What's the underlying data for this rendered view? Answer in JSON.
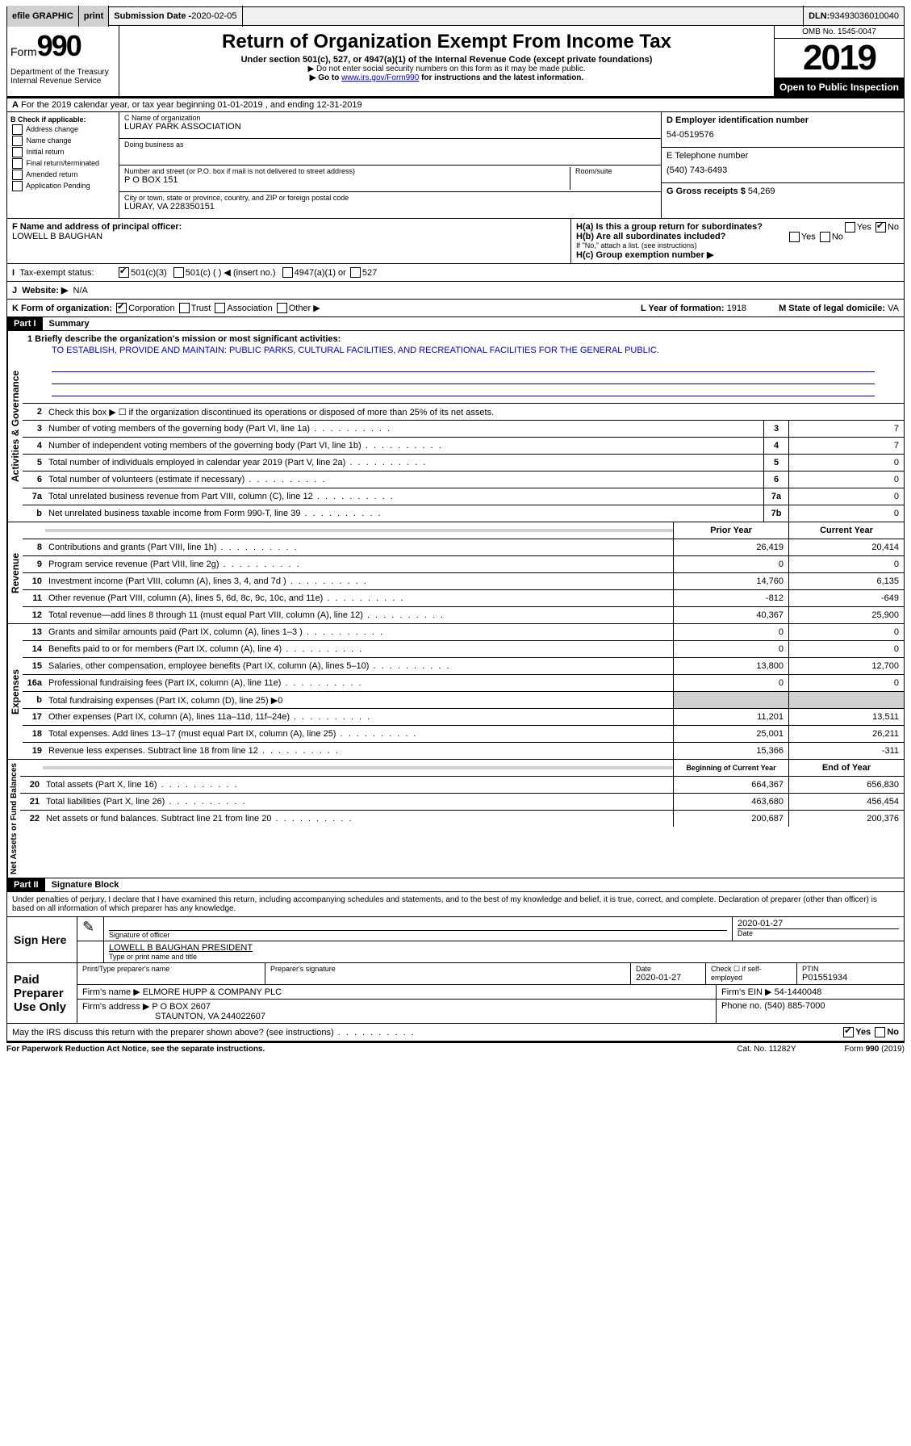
{
  "top": {
    "efile": "efile GRAPHIC",
    "print": "print",
    "subdate_lbl": "Submission Date - ",
    "subdate": "2020-02-05",
    "dln_lbl": "DLN: ",
    "dln": "93493036010040"
  },
  "header": {
    "form": "Form",
    "num": "990",
    "dept": "Department of the Treasury\nInternal Revenue Service",
    "title": "Return of Organization Exempt From Income Tax",
    "sub": "Under section 501(c), 527, or 4947(a)(1) of the Internal Revenue Code (except private foundations)",
    "note1": "▶ Do not enter social security numbers on this form as it may be made public.",
    "note2_pre": "▶ Go to ",
    "note2_link": "www.irs.gov/Form990",
    "note2_post": " for instructions and the latest information.",
    "omb": "OMB No. 1545-0047",
    "year": "2019",
    "open": "Open to Public Inspection"
  },
  "lineA": "For the 2019 calendar year, or tax year beginning 01-01-2019   , and ending 12-31-2019",
  "checkB": {
    "title": "B Check if applicable:",
    "opts": [
      "Address change",
      "Name change",
      "Initial return",
      "Final return/terminated",
      "Amended return",
      "Application Pending"
    ]
  },
  "org": {
    "name_lbl": "C Name of organization",
    "name": "LURAY PARK ASSOCIATION",
    "dba_lbl": "Doing business as",
    "addr_lbl": "Number and street (or P.O. box if mail is not delivered to street address)",
    "room_lbl": "Room/suite",
    "addr": "P O BOX 151",
    "city_lbl": "City or town, state or province, country, and ZIP or foreign postal code",
    "city": "LURAY, VA  228350151"
  },
  "right": {
    "ein_lbl": "D Employer identification number",
    "ein": "54-0519576",
    "tel_lbl": "E Telephone number",
    "tel": "(540) 743-6493",
    "gross_lbl": "G Gross receipts $ ",
    "gross": "54,269"
  },
  "officer": {
    "lbl": "F  Name and address of principal officer:",
    "name": "LOWELL B BAUGHAN"
  },
  "h": {
    "ha": "H(a)  Is this a group return for subordinates?",
    "hb": "H(b)  Are all subordinates included?",
    "hb_note": "If \"No,\" attach a list. (see instructions)",
    "hc": "H(c)  Group exemption number ▶",
    "yes": "Yes",
    "no": "No"
  },
  "status": {
    "lbl": "Tax-exempt status:",
    "c3": "501(c)(3)",
    "c": "501(c) (  ) ◀ (insert no.)",
    "a1": "4947(a)(1) or",
    "s527": "527"
  },
  "website": {
    "lbl": "Website: ▶",
    "val": "N/A"
  },
  "formK": {
    "lbl": "K Form of organization:",
    "opts": [
      "Corporation",
      "Trust",
      "Association",
      "Other ▶"
    ],
    "year_lbl": "L Year of formation: ",
    "year": "1918",
    "state_lbl": "M State of legal domicile: ",
    "state": "VA"
  },
  "part1": {
    "hdr": "Part I",
    "title": "Summary",
    "mission_lbl": "1  Briefly describe the organization's mission or most significant activities:",
    "mission": "TO ESTABLISH, PROVIDE AND MAINTAIN: PUBLIC PARKS, CULTURAL FACILITIES, AND RECREATIONAL FACILITIES FOR THE GENERAL PUBLIC.",
    "line2": "Check this box ▶ ☐  if the organization discontinued its operations or disposed of more than 25% of its net assets."
  },
  "gov": {
    "label": "Activities & Governance",
    "lines": [
      {
        "n": "3",
        "t": "Number of voting members of the governing body (Part VI, line 1a)",
        "b": "3",
        "v": "7"
      },
      {
        "n": "4",
        "t": "Number of independent voting members of the governing body (Part VI, line 1b)",
        "b": "4",
        "v": "7"
      },
      {
        "n": "5",
        "t": "Total number of individuals employed in calendar year 2019 (Part V, line 2a)",
        "b": "5",
        "v": "0"
      },
      {
        "n": "6",
        "t": "Total number of volunteers (estimate if necessary)",
        "b": "6",
        "v": "0"
      },
      {
        "n": "7a",
        "t": "Total unrelated business revenue from Part VIII, column (C), line 12",
        "b": "7a",
        "v": "0"
      },
      {
        "n": "b",
        "t": "Net unrelated business taxable income from Form 990-T, line 39",
        "b": "7b",
        "v": "0"
      }
    ]
  },
  "rev": {
    "label": "Revenue",
    "hdr_prior": "Prior Year",
    "hdr_curr": "Current Year",
    "lines": [
      {
        "n": "8",
        "t": "Contributions and grants (Part VIII, line 1h)",
        "p": "26,419",
        "c": "20,414"
      },
      {
        "n": "9",
        "t": "Program service revenue (Part VIII, line 2g)",
        "p": "0",
        "c": "0"
      },
      {
        "n": "10",
        "t": "Investment income (Part VIII, column (A), lines 3, 4, and 7d )",
        "p": "14,760",
        "c": "6,135"
      },
      {
        "n": "11",
        "t": "Other revenue (Part VIII, column (A), lines 5, 6d, 8c, 9c, 10c, and 11e)",
        "p": "-812",
        "c": "-649"
      },
      {
        "n": "12",
        "t": "Total revenue—add lines 8 through 11 (must equal Part VIII, column (A), line 12)",
        "p": "40,367",
        "c": "25,900"
      }
    ]
  },
  "exp": {
    "label": "Expenses",
    "lines": [
      {
        "n": "13",
        "t": "Grants and similar amounts paid (Part IX, column (A), lines 1–3 )",
        "p": "0",
        "c": "0"
      },
      {
        "n": "14",
        "t": "Benefits paid to or for members (Part IX, column (A), line 4)",
        "p": "0",
        "c": "0"
      },
      {
        "n": "15",
        "t": "Salaries, other compensation, employee benefits (Part IX, column (A), lines 5–10)",
        "p": "13,800",
        "c": "12,700"
      },
      {
        "n": "16a",
        "t": "Professional fundraising fees (Part IX, column (A), line 11e)",
        "p": "0",
        "c": "0"
      },
      {
        "n": "b",
        "t": "Total fundraising expenses (Part IX, column (D), line 25) ▶0",
        "p": "",
        "c": "",
        "grey": true
      },
      {
        "n": "17",
        "t": "Other expenses (Part IX, column (A), lines 11a–11d, 11f–24e)",
        "p": "11,201",
        "c": "13,511"
      },
      {
        "n": "18",
        "t": "Total expenses. Add lines 13–17 (must equal Part IX, column (A), line 25)",
        "p": "25,001",
        "c": "26,211"
      },
      {
        "n": "19",
        "t": "Revenue less expenses. Subtract line 18 from line 12",
        "p": "15,366",
        "c": "-311"
      }
    ]
  },
  "net": {
    "label": "Net Assets or Fund Balances",
    "hdr_beg": "Beginning of Current Year",
    "hdr_end": "End of Year",
    "lines": [
      {
        "n": "20",
        "t": "Total assets (Part X, line 16)",
        "p": "664,367",
        "c": "656,830"
      },
      {
        "n": "21",
        "t": "Total liabilities (Part X, line 26)",
        "p": "463,680",
        "c": "456,454"
      },
      {
        "n": "22",
        "t": "Net assets or fund balances. Subtract line 21 from line 20",
        "p": "200,687",
        "c": "200,376"
      }
    ]
  },
  "part2": {
    "hdr": "Part II",
    "title": "Signature Block",
    "perjury": "Under penalties of perjury, I declare that I have examined this return, including accompanying schedules and statements, and to the best of my knowledge and belief, it is true, correct, and complete. Declaration of preparer (other than officer) is based on all information of which preparer has any knowledge."
  },
  "sign": {
    "here": "Sign Here",
    "sig_lbl": "Signature of officer",
    "date": "2020-01-27",
    "date_lbl": "Date",
    "name": "LOWELL B BAUGHAN  PRESIDENT",
    "name_lbl": "Type or print name and title"
  },
  "paid": {
    "hdr": "Paid Preparer Use Only",
    "prep_lbl": "Print/Type preparer's name",
    "sig_lbl": "Preparer's signature",
    "date_lbl": "Date",
    "date": "2020-01-27",
    "check_lbl": "Check ☐ if self-employed",
    "ptin_lbl": "PTIN",
    "ptin": "P01551934",
    "firm_lbl": "Firm's name   ▶ ",
    "firm": "ELMORE HUPP & COMPANY PLC",
    "ein_lbl": "Firm's EIN ▶ ",
    "ein": "54-1440048",
    "addr_lbl": "Firm's address ▶ ",
    "addr": "P O BOX 2607",
    "addr2": "STAUNTON, VA  244022607",
    "phone_lbl": "Phone no. ",
    "phone": "(540) 885-7000"
  },
  "discuss": "May the IRS discuss this return with the preparer shown above? (see instructions)",
  "footer": {
    "left": "For Paperwork Reduction Act Notice, see the separate instructions.",
    "mid": "Cat. No. 11282Y",
    "right": "Form 990 (2019)"
  }
}
